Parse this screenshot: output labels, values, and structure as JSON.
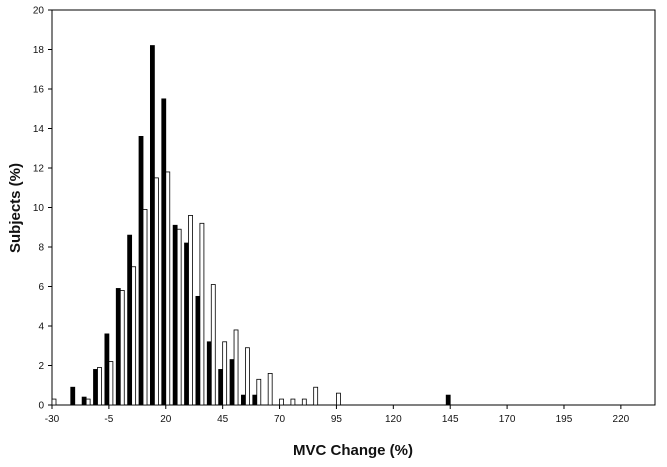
{
  "chart_data": {
    "type": "bar",
    "title": "",
    "xlabel": "MVC Change (%)",
    "ylabel": "Subjects (%)",
    "xlim": [
      -30,
      235
    ],
    "ylim": [
      0,
      20
    ],
    "x_ticks": [
      -30,
      -5,
      20,
      45,
      70,
      95,
      120,
      145,
      170,
      195,
      220
    ],
    "y_ticks": [
      0,
      2,
      4,
      6,
      8,
      10,
      12,
      14,
      16,
      18,
      20
    ],
    "grid": false,
    "legend": "none",
    "bin_width": 5,
    "series": [
      {
        "color": "#000000",
        "points": [
          {
            "x": -20,
            "y": 0.9
          },
          {
            "x": -15,
            "y": 0.4
          },
          {
            "x": -10,
            "y": 1.8
          },
          {
            "x": -5,
            "y": 3.6
          },
          {
            "x": 0,
            "y": 5.9
          },
          {
            "x": 5,
            "y": 8.6
          },
          {
            "x": 10,
            "y": 13.6
          },
          {
            "x": 15,
            "y": 18.2
          },
          {
            "x": 20,
            "y": 15.5
          },
          {
            "x": 25,
            "y": 9.1
          },
          {
            "x": 30,
            "y": 8.2
          },
          {
            "x": 35,
            "y": 5.5
          },
          {
            "x": 40,
            "y": 3.2
          },
          {
            "x": 45,
            "y": 1.8
          },
          {
            "x": 50,
            "y": 2.3
          },
          {
            "x": 55,
            "y": 0.5
          },
          {
            "x": 60,
            "y": 0.5
          },
          {
            "x": 145,
            "y": 0.5
          }
        ]
      },
      {
        "color": "#ffffff",
        "points": [
          {
            "x": -30,
            "y": 0.3
          },
          {
            "x": -15,
            "y": 0.3
          },
          {
            "x": -10,
            "y": 1.9
          },
          {
            "x": -5,
            "y": 2.2
          },
          {
            "x": 0,
            "y": 5.8
          },
          {
            "x": 5,
            "y": 7.0
          },
          {
            "x": 10,
            "y": 9.9
          },
          {
            "x": 15,
            "y": 11.5
          },
          {
            "x": 20,
            "y": 11.8
          },
          {
            "x": 25,
            "y": 8.9
          },
          {
            "x": 30,
            "y": 9.6
          },
          {
            "x": 35,
            "y": 9.2
          },
          {
            "x": 40,
            "y": 6.1
          },
          {
            "x": 45,
            "y": 3.2
          },
          {
            "x": 50,
            "y": 3.8
          },
          {
            "x": 55,
            "y": 2.9
          },
          {
            "x": 60,
            "y": 1.3
          },
          {
            "x": 65,
            "y": 1.6
          },
          {
            "x": 70,
            "y": 0.3
          },
          {
            "x": 75,
            "y": 0.3
          },
          {
            "x": 80,
            "y": 0.3
          },
          {
            "x": 85,
            "y": 0.9
          },
          {
            "x": 95,
            "y": 0.6
          }
        ]
      }
    ]
  }
}
